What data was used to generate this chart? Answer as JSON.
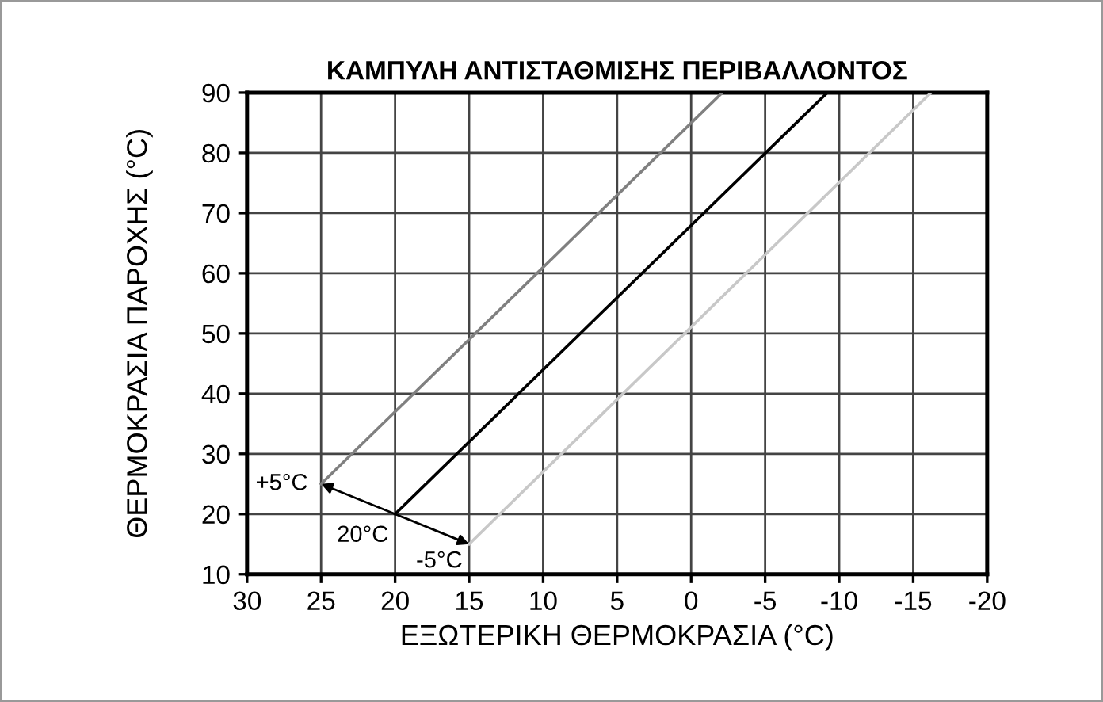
{
  "chart_data": {
    "type": "line",
    "title": "ΚΑΜΠΥΛΗ ΑΝΤΙΣΤΑΘΜΙΣΗΣ ΠΕΡΙΒΑΛΛΟΝΤΟΣ",
    "xlabel": "ΕΞΩΤΕΡΙΚΗ ΘΕΡΜΟΚΡΑΣΙΑ (°C)",
    "ylabel": "ΘΕΡΜΟΚΡΑΣΙΑ ΠΑΡΟΧΗΣ (°C)",
    "series": [
      {
        "color": "#808080",
        "x": [
          25,
          -2.1
        ],
        "values": [
          25,
          90
        ]
      },
      {
        "color": "#000000",
        "x": [
          20,
          -9.2
        ],
        "values": [
          20,
          90
        ]
      },
      {
        "color": "#c8c8c8",
        "x": [
          15,
          -16.2
        ],
        "values": [
          15,
          90
        ]
      }
    ],
    "annotations": [
      {
        "text": "+5°C",
        "x": 25,
        "y": 25
      },
      {
        "text": "20°C",
        "x": 20,
        "y": 20
      },
      {
        "text": "-5°C",
        "x": 15,
        "y": 15
      }
    ],
    "xlim": [
      30,
      -20
    ],
    "xticks": [
      30,
      25,
      20,
      15,
      10,
      5,
      0,
      -5,
      -10,
      -15,
      -20
    ],
    "ylim": [
      10,
      90
    ],
    "yticks": [
      10,
      20,
      30,
      40,
      50,
      60,
      70,
      80,
      90
    ],
    "grid": true,
    "legend": false,
    "marker": "none",
    "line_style": "solid"
  }
}
